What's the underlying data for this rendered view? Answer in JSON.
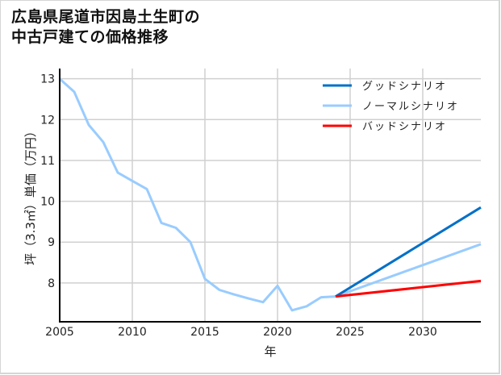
{
  "title_line1": "広島県尾道市因島土生町の",
  "title_line2": "中古戸建ての価格推移",
  "chart_data": {
    "type": "line",
    "title": "広島県尾道市因島土生町の中古戸建ての価格推移",
    "xlabel": "年",
    "ylabel": "坪（3.3㎡）単価（万円）",
    "xlim": [
      2005,
      2034
    ],
    "ylim": [
      7.05,
      13.25
    ],
    "xticks": [
      2005,
      2010,
      2015,
      2020,
      2025,
      2030
    ],
    "yticks": [
      8,
      9,
      10,
      11,
      12,
      13
    ],
    "grid": true,
    "legend_position": "upper right",
    "series": [
      {
        "name": "グッドシナリオ",
        "color": "#0070c8",
        "x": [
          2024,
          2034
        ],
        "values": [
          7.67,
          9.85
        ]
      },
      {
        "name": "ノーマルシナリオ",
        "color": "#99ccff",
        "x": [
          2005,
          2006,
          2007,
          2008,
          2009,
          2010,
          2011,
          2012,
          2013,
          2014,
          2015,
          2016,
          2017,
          2018,
          2019,
          2020,
          2021,
          2022,
          2023,
          2024,
          2034
        ],
        "values": [
          13.0,
          12.68,
          11.87,
          11.45,
          10.7,
          10.5,
          10.3,
          9.47,
          9.35,
          9.0,
          8.1,
          7.83,
          7.72,
          7.62,
          7.53,
          7.93,
          7.33,
          7.43,
          7.65,
          7.67,
          8.95
        ]
      },
      {
        "name": "バッドシナリオ",
        "color": "#ff0000",
        "x": [
          2024,
          2034
        ],
        "values": [
          7.67,
          8.05
        ]
      }
    ]
  }
}
